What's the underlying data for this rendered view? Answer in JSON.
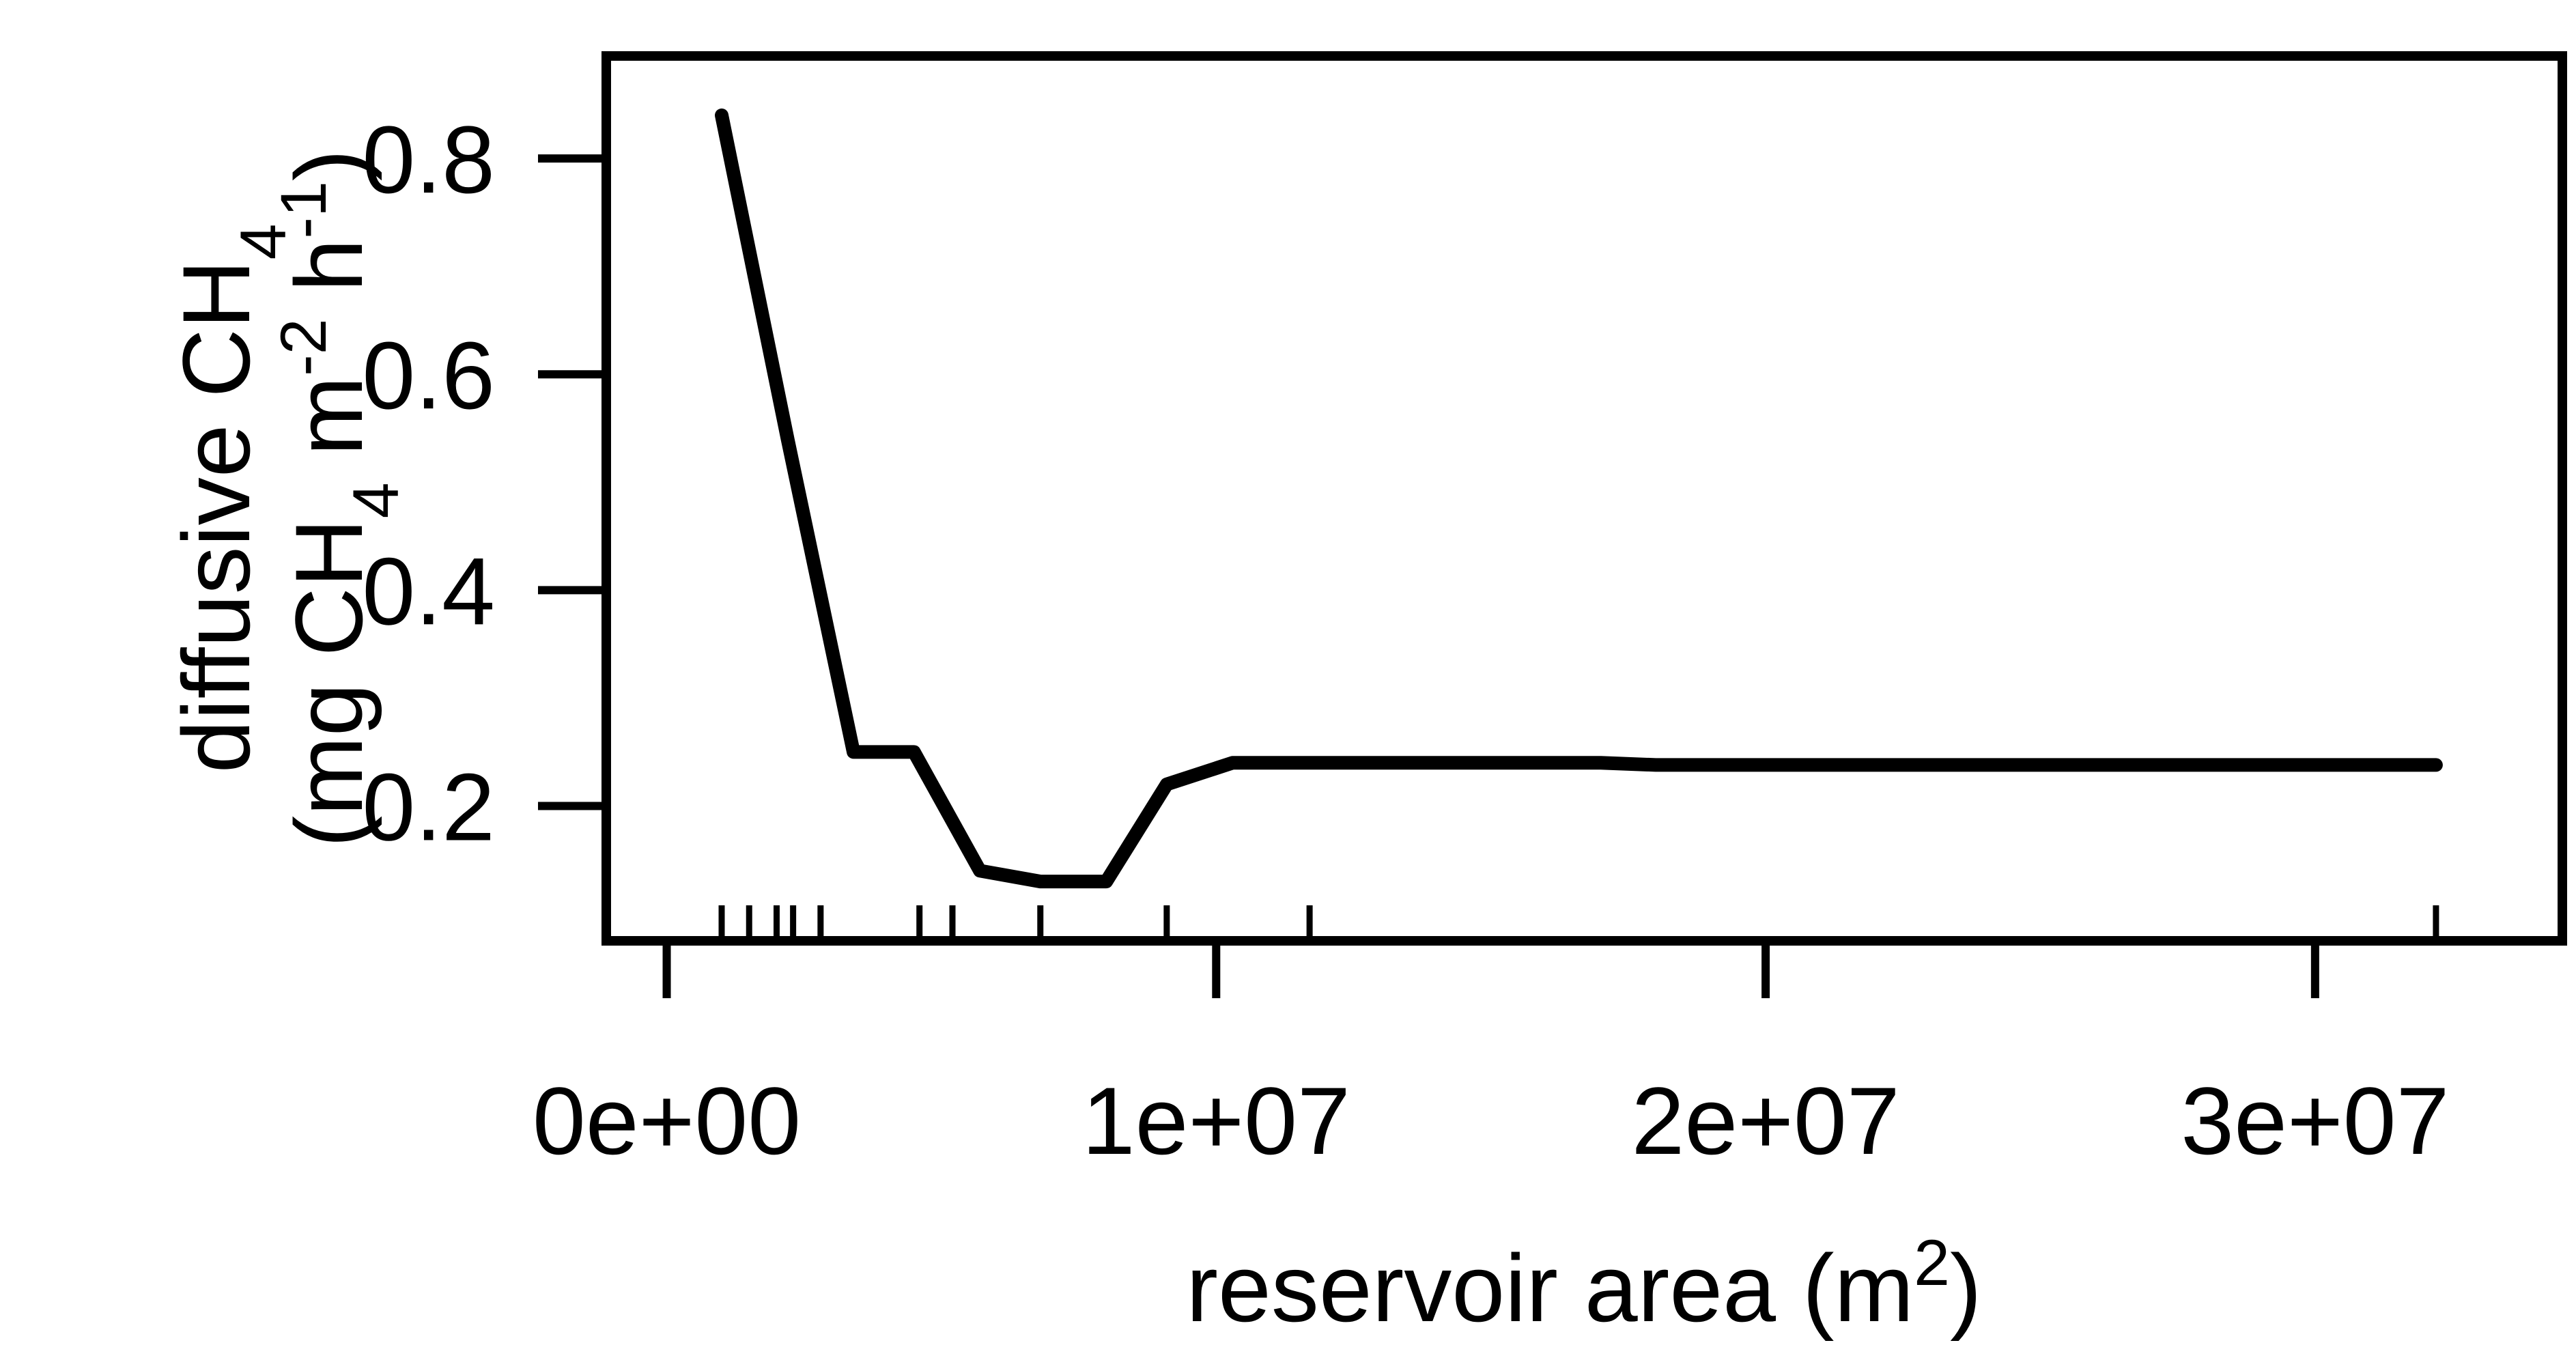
{
  "chart_data": {
    "type": "line",
    "title": "",
    "xlabel": "reservoir area (m²)",
    "xlabel_parts": [
      "reservoir area (m",
      "2",
      ")"
    ],
    "ylabel_line1": "diffusive CH₄",
    "ylabel_line1_parts": [
      "diffusive CH",
      "4"
    ],
    "ylabel_line2": "(mg CH₄ m⁻² h⁻¹)",
    "ylabel_line2_parts": [
      "(mg CH",
      "4",
      " m",
      "-2",
      " h",
      "-1",
      ")"
    ],
    "xlim": [
      -1100000,
      34500000
    ],
    "ylim": [
      0.075,
      0.895
    ],
    "x_ticks": [
      0,
      10000000,
      20000000,
      30000000
    ],
    "x_tick_labels": [
      "0e+00",
      "1e+07",
      "2e+07",
      "3e+07"
    ],
    "y_ticks": [
      0.2,
      0.4,
      0.6,
      0.8
    ],
    "y_tick_labels": [
      "0.2",
      "0.4",
      "0.6",
      "0.8"
    ],
    "grid": false,
    "legend": "none",
    "line_color": "#000000",
    "series": [
      {
        "x": [
          1000000,
          2200000,
          3400000,
          4500000,
          5700000,
          6800000,
          8000000,
          9100000,
          10300000,
          17000000,
          18000000,
          32200000
        ],
        "y": [
          0.84,
          0.54,
          0.25,
          0.25,
          0.14,
          0.13,
          0.13,
          0.22,
          0.24,
          0.24,
          0.238,
          0.238
        ]
      }
    ],
    "rug_x": [
      1000000,
      1500000,
      2000000,
      2300000,
      2800000,
      4600000,
      5200000,
      6800000,
      9100000,
      11700000,
      32200000
    ]
  }
}
